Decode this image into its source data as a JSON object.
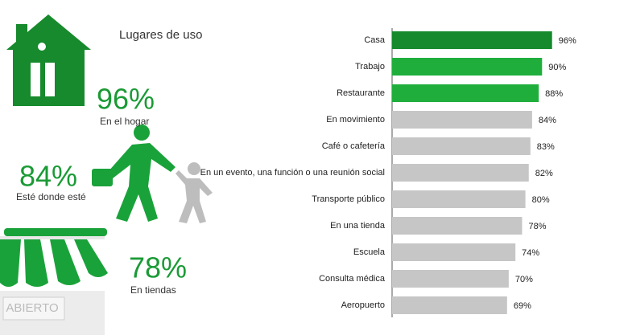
{
  "chart_data": {
    "type": "bar",
    "orientation": "horizontal",
    "title": "Lugares de uso",
    "categories": [
      "Casa",
      "Trabajo",
      "Restaurante",
      "En movimiento",
      "Café o cafetería",
      "En un evento, una función o una reunión social",
      "Transporte público",
      "En una tienda",
      "Escuela",
      "Consulta médica",
      "Aeropuerto"
    ],
    "values": [
      96,
      90,
      88,
      84,
      83,
      82,
      80,
      78,
      74,
      70,
      69
    ],
    "value_labels": [
      "96%",
      "90%",
      "88%",
      "84%",
      "83%",
      "82%",
      "80%",
      "78%",
      "74%",
      "70%",
      "69%"
    ],
    "colors": [
      "#168a2c",
      "#1fae3c",
      "#1fae3c",
      "#c6c6c6",
      "#c6c6c6",
      "#c6c6c6",
      "#c6c6c6",
      "#c6c6c6",
      "#c6c6c6",
      "#c6c6c6",
      "#c6c6c6"
    ],
    "xlim": [
      0,
      100
    ]
  },
  "highlights": [
    {
      "figure": "96%",
      "caption": "En el hogar"
    },
    {
      "figure": "84%",
      "caption": "Esté donde esté"
    },
    {
      "figure": "78%",
      "caption": "En tiendas"
    }
  ],
  "sign": "ABIERTO"
}
